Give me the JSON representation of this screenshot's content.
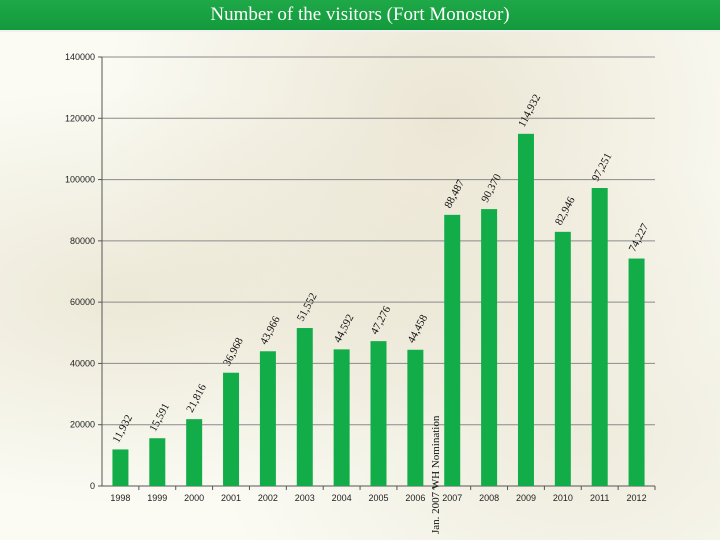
{
  "title": "Number of the visitors (Fort Monostor)",
  "colors": {
    "bar": "#12ad48",
    "title_bg": "#17a243",
    "grid": "#8a8a8a"
  },
  "chart_data": {
    "type": "bar",
    "title": "Number of the visitors (Fort Monostor)",
    "xlabel": "",
    "ylabel": "",
    "categories": [
      "1998",
      "1999",
      "2000",
      "2001",
      "2002",
      "2003",
      "2004",
      "2005",
      "2006",
      "2007",
      "2008",
      "2009",
      "2010",
      "2011",
      "2012"
    ],
    "values": [
      11932,
      15591,
      21816,
      36968,
      43966,
      51552,
      44592,
      47276,
      44458,
      88487,
      90370,
      114932,
      82946,
      97251,
      74227
    ],
    "data_labels": [
      "11,932",
      "15,591",
      "21,816",
      "36,968",
      "43,966",
      "51,552",
      "44,592",
      "47,276",
      "44,458",
      "88,487",
      "90,370",
      "114,932",
      "82,946",
      "97,251",
      "74,227"
    ],
    "ylim": [
      0,
      140000
    ],
    "yticks": [
      0,
      20000,
      40000,
      60000,
      80000,
      100000,
      120000,
      140000
    ],
    "ytick_labels": [
      "0",
      "20000",
      "40000",
      "60000",
      "80000",
      "100000",
      "120000",
      "140000"
    ],
    "grid": true,
    "legend": "none",
    "annotations": [
      {
        "text": "Jan. 2007  WH Nomination",
        "at_category": "2007",
        "orientation": "vertical"
      }
    ]
  }
}
